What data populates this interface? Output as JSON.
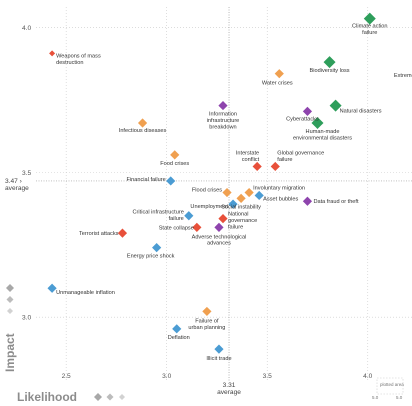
{
  "chart_data": {
    "type": "scatter",
    "xlabel": "Likelihood",
    "ylabel": "Impact",
    "xlim": [
      2.35,
      4.22
    ],
    "ylim": [
      2.78,
      4.07
    ],
    "x_ticks": [
      "2.5",
      "3.0",
      "3.5",
      "4.0"
    ],
    "y_ticks": [
      "3.0",
      "3.5",
      "4.0"
    ],
    "x_average": {
      "value": 3.31,
      "label": "3.31",
      "sublabel": "average"
    },
    "y_average": {
      "value": 3.47,
      "label": "3.47",
      "sublabel": "average"
    },
    "grid": "dotted",
    "legend_text": "plotted area",
    "colors": {
      "economic": "#4b9cd3",
      "environmental": "#2e9e5b",
      "geopolitical": "#e8503a",
      "societal": "#f0a050",
      "technological": "#8e44ad"
    },
    "points": [
      {
        "label": "Climate action failure",
        "x": 4.01,
        "y": 4.03,
        "cat": "environmental"
      },
      {
        "label": "Extreme weather",
        "x": 4.25,
        "y": 3.86,
        "cat": "environmental"
      },
      {
        "label": "Biodiversity loss",
        "x": 3.81,
        "y": 3.88,
        "cat": "environmental"
      },
      {
        "label": "Natural disasters",
        "x": 3.84,
        "y": 3.73,
        "cat": "environmental"
      },
      {
        "label": "Human-made environmental disasters",
        "x": 3.75,
        "y": 3.67,
        "cat": "environmental"
      },
      {
        "label": "Weapons of mass destruction",
        "x": 2.43,
        "y": 3.91,
        "cat": "geopolitical"
      },
      {
        "label": "Water crises",
        "x": 3.56,
        "y": 3.84,
        "cat": "societal"
      },
      {
        "label": "Cyberattacks",
        "x": 3.7,
        "y": 3.71,
        "cat": "technological"
      },
      {
        "label": "Information infrastructure breakdown",
        "x": 3.28,
        "y": 3.73,
        "cat": "technological"
      },
      {
        "label": "Infectious diseases",
        "x": 2.88,
        "y": 3.67,
        "cat": "societal"
      },
      {
        "label": "Food crises",
        "x": 3.04,
        "y": 3.56,
        "cat": "societal"
      },
      {
        "label": "Interstate conflict",
        "x": 3.45,
        "y": 3.52,
        "cat": "geopolitical"
      },
      {
        "label": "Global governance failure",
        "x": 3.54,
        "y": 3.52,
        "cat": "geopolitical"
      },
      {
        "label": "Financial failure",
        "x": 3.02,
        "y": 3.47,
        "cat": "economic"
      },
      {
        "label": "Flood crises",
        "x": 3.3,
        "y": 3.43,
        "cat": "societal"
      },
      {
        "label": "Involuntary migration",
        "x": 3.41,
        "y": 3.43,
        "cat": "societal"
      },
      {
        "label": "Asset bubbles",
        "x": 3.46,
        "y": 3.42,
        "cat": "economic"
      },
      {
        "label": "Data fraud or theft",
        "x": 3.7,
        "y": 3.4,
        "cat": "technological"
      },
      {
        "label": "Unemployment",
        "x": 3.33,
        "y": 3.39,
        "cat": "economic"
      },
      {
        "label": "Social instability",
        "x": 3.37,
        "y": 3.41,
        "cat": "societal"
      },
      {
        "label": "Critical infrastructure failure",
        "x": 3.11,
        "y": 3.35,
        "cat": "economic"
      },
      {
        "label": "National governance failure",
        "x": 3.28,
        "y": 3.34,
        "cat": "geopolitical"
      },
      {
        "label": "State collapse",
        "x": 3.15,
        "y": 3.31,
        "cat": "geopolitical"
      },
      {
        "label": "Adverse technological advances",
        "x": 3.26,
        "y": 3.31,
        "cat": "technological"
      },
      {
        "label": "Terrorist attacks",
        "x": 2.78,
        "y": 3.29,
        "cat": "geopolitical"
      },
      {
        "label": "Energy price shock",
        "x": 2.95,
        "y": 3.24,
        "cat": "economic"
      },
      {
        "label": "Unmanageable inflation",
        "x": 2.43,
        "y": 3.1,
        "cat": "economic"
      },
      {
        "label": "Failure of urban planning",
        "x": 3.2,
        "y": 3.02,
        "cat": "societal"
      },
      {
        "label": "Deflation",
        "x": 3.05,
        "y": 2.96,
        "cat": "economic"
      },
      {
        "label": "Illicit trade",
        "x": 3.26,
        "y": 2.89,
        "cat": "economic"
      }
    ]
  }
}
